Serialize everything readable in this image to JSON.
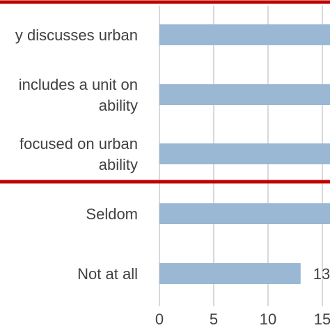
{
  "chart_data": {
    "type": "bar",
    "orientation": "horizontal",
    "categories": [
      [
        "y discusses urban"
      ],
      [
        "includes a unit on",
        "ability"
      ],
      [
        "focused on urban",
        "ability"
      ],
      [
        "Seldom"
      ],
      [
        "Not at all"
      ]
    ],
    "values": [
      16,
      16,
      16,
      16,
      13
    ],
    "data_labels": [
      "",
      "",
      "",
      "",
      "13"
    ],
    "x_ticks": [
      "0",
      "5",
      "10",
      "15"
    ],
    "xlim": [
      0,
      16
    ],
    "grid": true,
    "colors": {
      "bar": "#9ab7d4",
      "highlight_box": "#c00000",
      "grid": "#d9d9d9",
      "text": "#404040"
    }
  }
}
